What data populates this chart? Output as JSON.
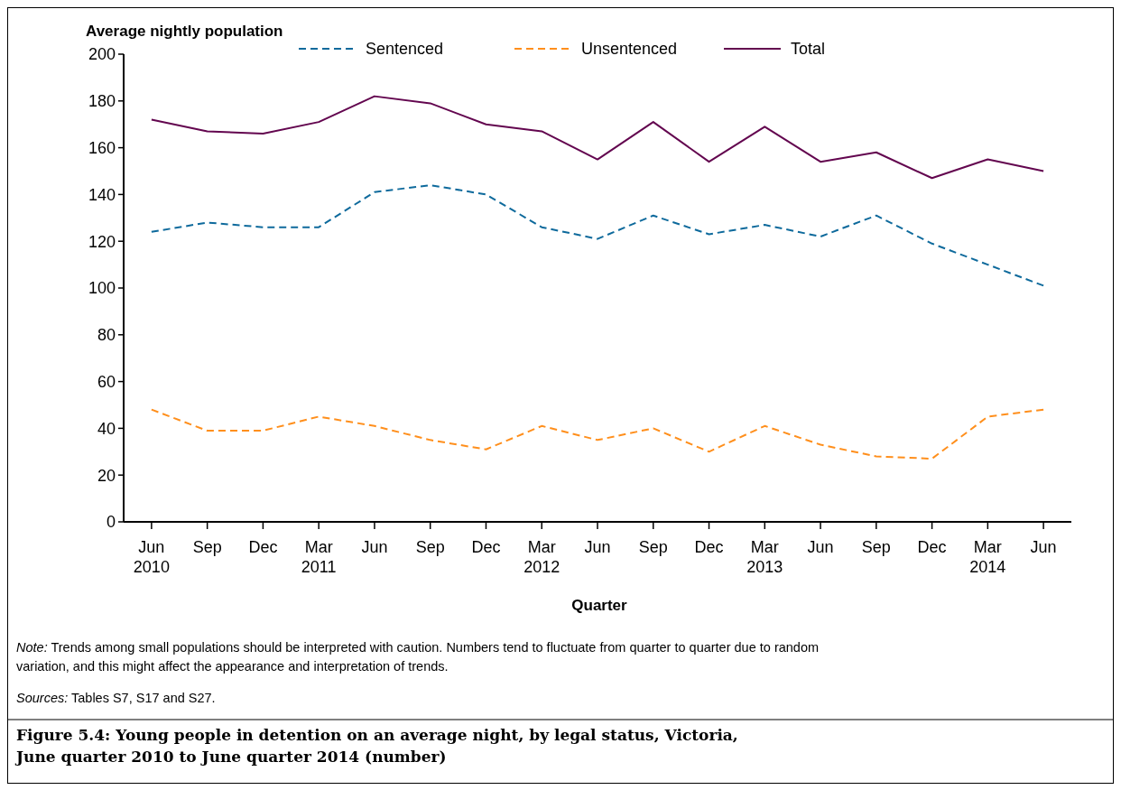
{
  "chart_data": {
    "type": "line",
    "title": "Figure 5.4: Young people in detention on an average night, by legal status, Victoria,\nJune quarter 2010 to June quarter 2014 (number)",
    "xlabel": "Quarter",
    "ylabel": "Average nightly population",
    "categories": [
      "Jun\n2010",
      "Sep",
      "Dec",
      "Mar\n2011",
      "Jun",
      "Sep",
      "Dec",
      "Mar\n2012",
      "Jun",
      "Sep",
      "Dec",
      "Mar\n2013",
      "Jun",
      "Sep",
      "Dec",
      "Mar\n2014",
      "Jun"
    ],
    "series": [
      {
        "name": "Sentenced",
        "color": "#0e6a9c",
        "line_style": "dashed",
        "values": [
          124,
          128,
          126,
          126,
          141,
          144,
          140,
          126,
          121,
          131,
          123,
          127,
          122,
          131,
          119,
          110,
          101
        ]
      },
      {
        "name": "Unsentenced",
        "color": "#ff8f1c",
        "line_style": "dashed",
        "values": [
          48,
          39,
          39,
          45,
          41,
          35,
          31,
          41,
          35,
          40,
          30,
          41,
          33,
          28,
          27,
          45,
          48
        ]
      },
      {
        "name": "Total",
        "color": "#63064f",
        "line_style": "solid",
        "values": [
          172,
          167,
          166,
          171,
          182,
          179,
          170,
          167,
          155,
          171,
          154,
          169,
          154,
          158,
          147,
          155,
          150
        ]
      }
    ],
    "ylim": [
      0,
      200
    ],
    "yticks": [
      0,
      20,
      40,
      60,
      80,
      100,
      120,
      140,
      160,
      180,
      200
    ],
    "grid": false,
    "legend": "top",
    "marker": "none",
    "annotations": [
      "Note: Trends among small populations should be interpreted with caution. Numbers tend to fluctuate from quarter to quarter due to random\nvariation, and this might affect the appearance and interpretation of trends.",
      "Sources: Tables S7, S17 and S27."
    ]
  }
}
